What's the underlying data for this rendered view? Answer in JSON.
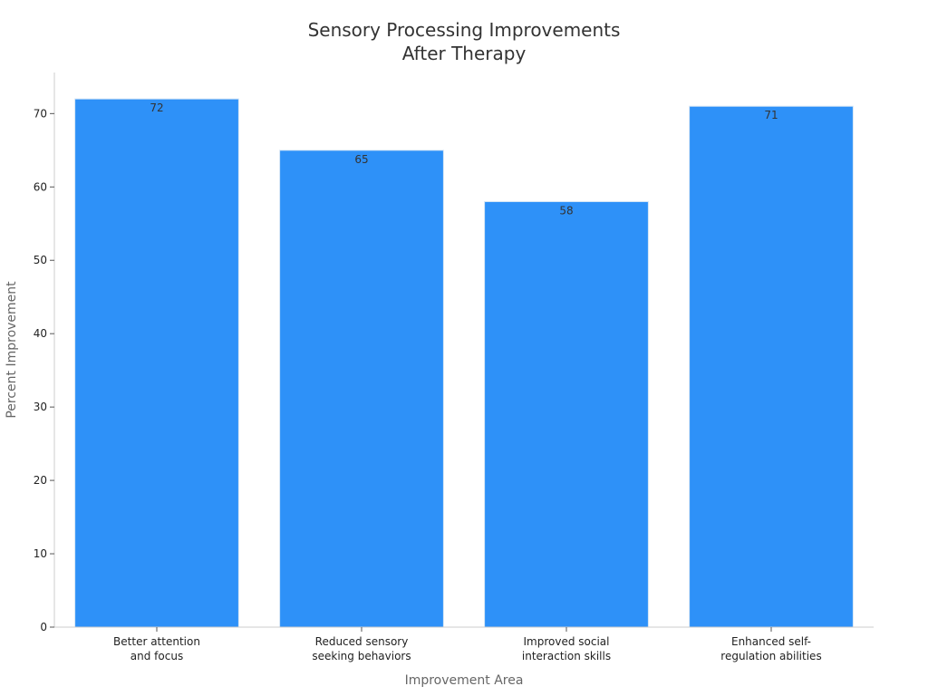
{
  "chart_data": {
    "type": "bar",
    "title_lines": [
      "Sensory Processing Improvements",
      "After Therapy"
    ],
    "xlabel": "Improvement Area",
    "ylabel": "Percent Improvement",
    "categories": [
      [
        "Better attention",
        "and focus"
      ],
      [
        "Reduced sensory",
        "seeking behaviors"
      ],
      [
        "Improved social",
        "interaction skills"
      ],
      [
        "Enhanced self-",
        "regulation abilities"
      ]
    ],
    "values": [
      72,
      65,
      58,
      71
    ],
    "data_labels": [
      "72",
      "65",
      "58",
      "71"
    ],
    "yticks": [
      0,
      10,
      20,
      30,
      40,
      50,
      60,
      70
    ],
    "ylim": [
      0,
      75.6
    ],
    "bar_color": "#2e91f8",
    "grid": false,
    "legend": "none"
  }
}
